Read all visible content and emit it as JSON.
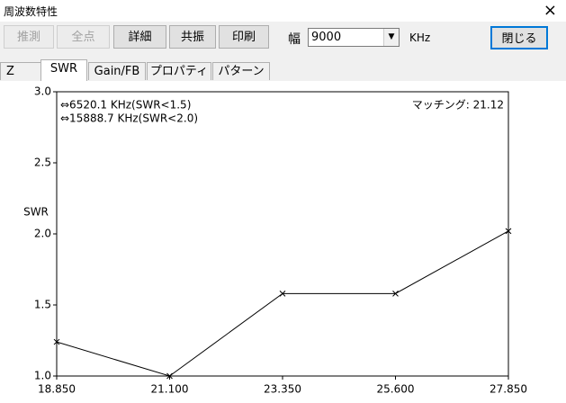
{
  "window": {
    "title": "周波数特性",
    "close": "×"
  },
  "toolbar": {
    "buttons": [
      "推測",
      "全点",
      "詳細",
      "共振",
      "印刷"
    ],
    "width_label": "幅",
    "width_value": "9000",
    "unit": "KHz",
    "close_button": "閉じる"
  },
  "tabs": [
    "Z",
    "SWR",
    "Gain/FB",
    "プロパティ",
    "パターン"
  ],
  "chart_data": {
    "type": "line",
    "y_label": "SWR",
    "annotations": [
      "⇔6520.1  KHz(SWR<1.5)",
      "⇔15888.7  KHz(SWR<2.0)",
      "マッチング: 21.12"
    ],
    "x": [
      18.85,
      21.1,
      23.35,
      25.6,
      27.85
    ],
    "series": [
      {
        "name": "SWR",
        "color": "#000000",
        "values": [
          1.24,
          1.0,
          1.58,
          1.58,
          2.02
        ]
      }
    ],
    "xlim": [
      18.85,
      27.85
    ],
    "xticks": [
      {
        "value": 18.85,
        "label": "18.850"
      },
      {
        "value": 21.1,
        "label": "21.100"
      },
      {
        "value": 23.35,
        "label": "23.350"
      },
      {
        "value": 25.6,
        "label": "25.600"
      },
      {
        "value": 27.85,
        "label": "27.850"
      }
    ],
    "ylim": [
      1,
      3
    ],
    "yticks": [
      {
        "value": 1,
        "label": "1.0"
      },
      {
        "value": 1.5,
        "label": "1.5"
      },
      {
        "value": 2,
        "label": "2.0"
      },
      {
        "value": 2.5,
        "label": "2.5"
      },
      {
        "value": 3,
        "label": "3.0"
      }
    ]
  }
}
